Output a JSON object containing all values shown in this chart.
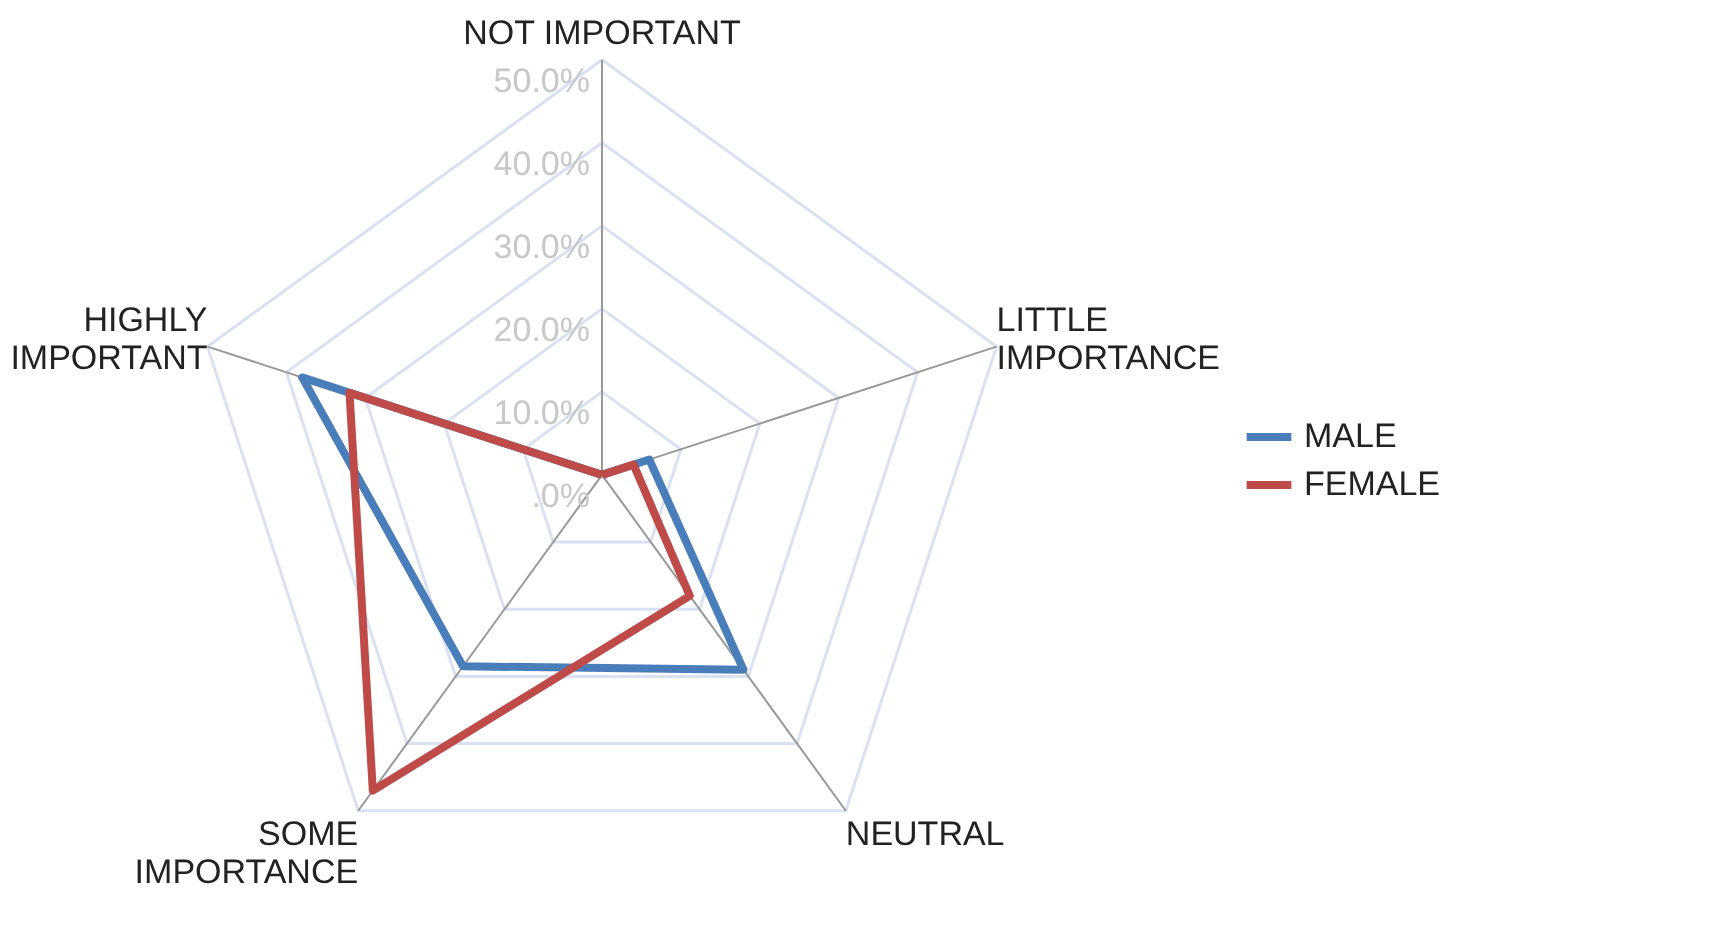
{
  "chart_data": {
    "type": "radar",
    "categories": [
      "NOT IMPORTANT",
      "LITTLE\nIMPORTANCE",
      "NEUTRAL",
      "SOME\nIMPORTANCE",
      "HIGHLY\nIMPORTANT"
    ],
    "series": [
      {
        "name": "MALE",
        "color": "#4a7ebb",
        "values": [
          0,
          6,
          29,
          28.5,
          38
        ]
      },
      {
        "name": "FEMALE",
        "color": "#be4b48",
        "values": [
          0,
          4,
          18,
          47,
          32
        ]
      }
    ],
    "ylim": [
      0,
      50
    ],
    "yticks": [
      {
        "value": 0,
        "label": ".0%"
      },
      {
        "value": 10,
        "label": "10.0%"
      },
      {
        "value": 20,
        "label": "20.0%"
      },
      {
        "value": 30,
        "label": "30.0%"
      },
      {
        "value": 40,
        "label": "40.0%"
      },
      {
        "value": 50,
        "label": "50.0%"
      }
    ],
    "legend": "right",
    "grid": true
  }
}
